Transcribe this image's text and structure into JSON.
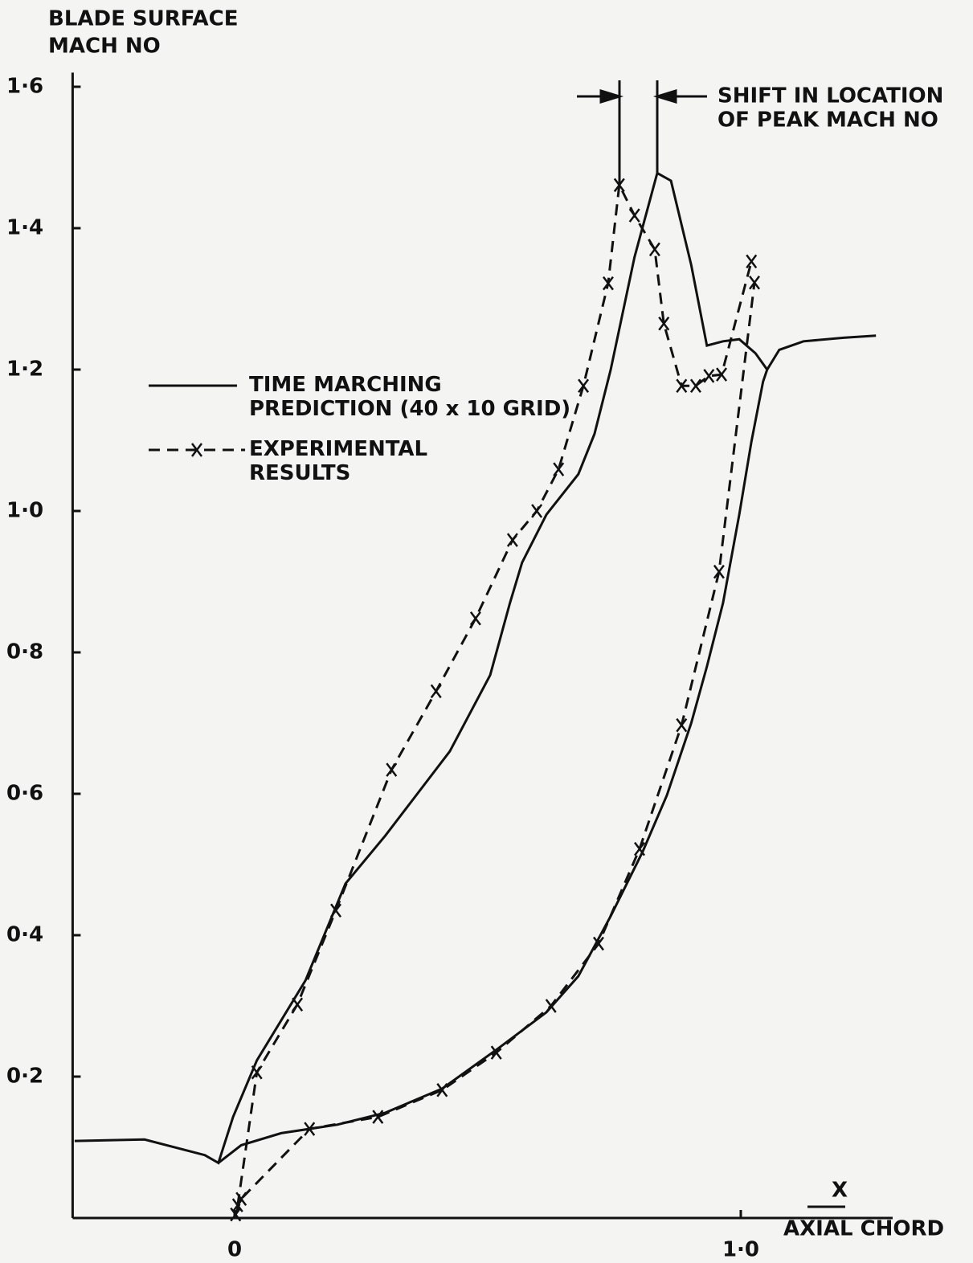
{
  "chart_data": {
    "type": "line",
    "y_label": [
      "BLADE SURFACE",
      "MACH NO"
    ],
    "x_label": {
      "numerator": "X",
      "denominator": "AXIAL CHORD"
    },
    "annotation": [
      "SHIFT IN LOCATION",
      "OF PEAK MACH NO"
    ],
    "xlim": [
      -0.32,
      1.3
    ],
    "ylim": [
      0,
      1.62
    ],
    "xticks": [
      0,
      {
        "value": 1,
        "label": "1·0"
      }
    ],
    "yticks": [
      {
        "value": 0.2,
        "label": "0·2"
      },
      {
        "value": 0.4,
        "label": "0·4"
      },
      {
        "value": 0.6,
        "label": "0·6"
      },
      {
        "value": 0.8,
        "label": "0·8"
      },
      {
        "value": 1.0,
        "label": "1·0"
      },
      {
        "value": 1.2,
        "label": "1·2"
      },
      {
        "value": 1.4,
        "label": "1·4"
      },
      {
        "value": 1.6,
        "label": "1·6"
      }
    ],
    "grid": false,
    "series": [
      {
        "name": "TIME MARCHING PREDICTION (40 x 10 GRID)",
        "color": "#111111",
        "dash": false,
        "marker": false,
        "x": [
          -0.316,
          -0.178,
          -0.059,
          -0.032,
          -0.003,
          0.044,
          0.14,
          0.219,
          0.298,
          0.425,
          0.505,
          0.544,
          0.568,
          0.616,
          0.679,
          0.711,
          0.743,
          0.79,
          0.835,
          0.862,
          0.902,
          0.933,
          0.965,
          0.997,
          1.029,
          1.052,
          1.076,
          1.124,
          1.203,
          1.267,
          null,
          -0.032,
          0.013,
          0.092,
          0.203,
          0.298,
          0.41,
          0.521,
          0.616,
          0.679,
          0.743,
          0.806,
          0.854,
          0.902,
          0.933,
          0.965,
          0.997,
          1.021,
          1.044,
          1.052
        ],
        "values": [
          0.109,
          0.111,
          0.089,
          0.078,
          0.143,
          0.223,
          0.336,
          0.473,
          0.541,
          0.66,
          0.768,
          0.87,
          0.927,
          0.995,
          1.052,
          1.109,
          1.2,
          1.359,
          1.478,
          1.467,
          1.348,
          1.234,
          1.24,
          1.243,
          1.223,
          1.2,
          1.228,
          1.24,
          1.245,
          1.248,
          null,
          0.078,
          0.103,
          0.12,
          0.132,
          0.149,
          0.183,
          0.24,
          0.291,
          0.342,
          0.427,
          0.518,
          0.598,
          0.7,
          0.78,
          0.87,
          0.995,
          1.098,
          1.183,
          1.2
        ]
      },
      {
        "name": "EXPERIMENTAL RESULTS",
        "color": "#111111",
        "dash": true,
        "marker": true,
        "x": [
          0.006,
          0.044,
          0.124,
          0.2,
          0.31,
          0.398,
          0.476,
          0.549,
          0.597,
          0.64,
          0.689,
          0.738,
          0.76,
          0.79,
          0.83,
          0.848,
          0.883,
          0.911,
          0.937,
          0.962,
          1.021,
          null,
          0.002,
          0.013,
          0.148,
          0.283,
          0.41,
          0.517,
          0.625,
          0.719,
          0.8,
          0.883,
          0.957,
          1.027
        ],
        "values": [
          0.018,
          0.206,
          0.302,
          0.435,
          0.634,
          0.745,
          0.848,
          0.959,
          1.0,
          1.059,
          1.177,
          1.322,
          1.461,
          1.418,
          1.37,
          1.265,
          1.177,
          1.177,
          1.191,
          1.193,
          1.353,
          null,
          0.005,
          0.027,
          0.126,
          0.143,
          0.181,
          0.234,
          0.3,
          0.388,
          0.522,
          0.697,
          0.914,
          1.323
        ]
      }
    ]
  }
}
